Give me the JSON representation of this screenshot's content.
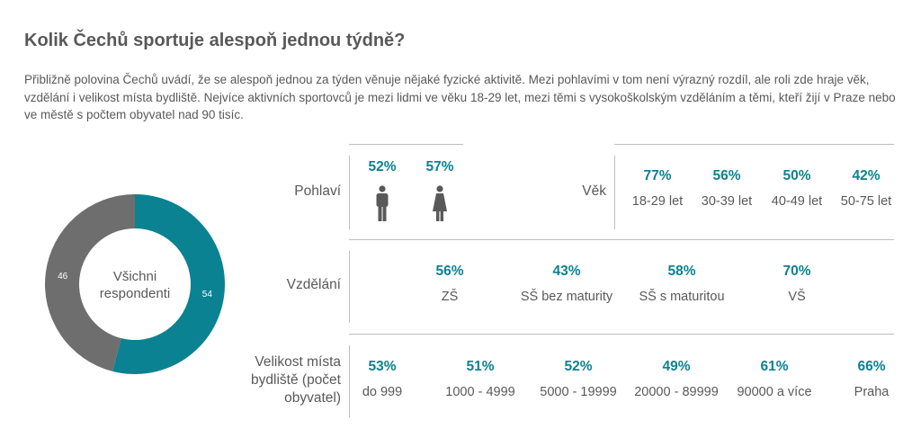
{
  "title": "Kolik Čechů sportuje alespoň jednou týdně?",
  "intro": "Přibližně polovina Čechů uvádí, že se alespoň jednou za týden věnuje nějaké fyzické aktivitě. Mezi pohlavími v tom není výrazný rozdíl, ale roli zde hraje věk, vzdělání i velikost místa bydliště. Nejvíce aktivních sportovců je mezi lidmi ve věku 18-29 let, mezi těmi s vysokoškolským vzděláním a těmi, kteří žijí v Praze nebo ve městě s počtem obyvatel nad 90 tisíc.",
  "colors": {
    "accent": "#0b8291",
    "grey": "#6e6e6e",
    "text": "#595959"
  },
  "chart_data": [
    {
      "type": "pie",
      "variant": "donut",
      "center_label": "Všichni respondenti",
      "slices": [
        {
          "label": "",
          "value": 54,
          "color": "#0b8291"
        },
        {
          "label": "",
          "value": 46,
          "color": "#6e6e6e"
        }
      ]
    },
    {
      "type": "table",
      "rows": [
        {
          "label": "Pohlaví",
          "items": [
            {
              "value": "52%",
              "icon": "male-icon"
            },
            {
              "value": "57%",
              "icon": "female-icon"
            }
          ]
        },
        {
          "label": "Věk",
          "items": [
            {
              "value": "77%",
              "category": "18-29 let"
            },
            {
              "value": "56%",
              "category": "30-39 let"
            },
            {
              "value": "50%",
              "category": "40-49 let"
            },
            {
              "value": "42%",
              "category": "50-75 let"
            }
          ]
        },
        {
          "label": "Vzdělání",
          "items": [
            {
              "value": "56%",
              "category": "ZŠ"
            },
            {
              "value": "43%",
              "category": "SŠ bez maturity"
            },
            {
              "value": "58%",
              "category": "SŠ s maturitou"
            },
            {
              "value": "70%",
              "category": "VŠ"
            }
          ]
        },
        {
          "label": "Velikost místa bydliště (počet obyvatel)",
          "items": [
            {
              "value": "53%",
              "category": "do 999"
            },
            {
              "value": "51%",
              "category": "1000 - 4999"
            },
            {
              "value": "52%",
              "category": "5000 - 19999"
            },
            {
              "value": "49%",
              "category": "20000 - 89999"
            },
            {
              "value": "61%",
              "category": "90000 a více"
            },
            {
              "value": "66%",
              "category": "Praha"
            }
          ]
        }
      ]
    }
  ]
}
